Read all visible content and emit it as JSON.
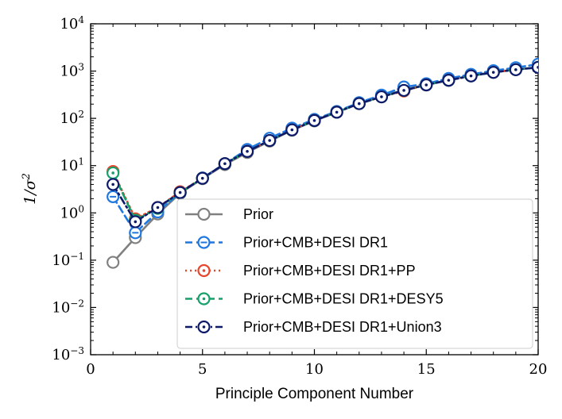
{
  "chart_data": {
    "type": "line",
    "title": "",
    "xlabel": "Principle Component Number",
    "ylabel": "1/σ²",
    "ylabel_base": "1/σ",
    "ylabel_sup": "2",
    "xlim": [
      0,
      20
    ],
    "ylim_log10": [
      -3,
      4
    ],
    "y_scale": "log",
    "x_ticks": [
      0,
      5,
      10,
      15,
      20
    ],
    "x_tick_labels": [
      "0",
      "5",
      "10",
      "15",
      "20"
    ],
    "y_ticks": [
      {
        "exp": -3,
        "base": "10",
        "sup": "−3"
      },
      {
        "exp": -2,
        "base": "10",
        "sup": "−2"
      },
      {
        "exp": -1,
        "base": "10",
        "sup": "−1"
      },
      {
        "exp": 0,
        "base": "10",
        "sup": "0"
      },
      {
        "exp": 1,
        "base": "10",
        "sup": "1"
      },
      {
        "exp": 2,
        "base": "10",
        "sup": "2"
      },
      {
        "exp": 3,
        "base": "10",
        "sup": "3"
      },
      {
        "exp": 4,
        "base": "10",
        "sup": "4"
      }
    ],
    "legend_position": "bottom-right",
    "x": [
      1,
      2,
      3,
      4,
      5,
      6,
      7,
      8,
      9,
      10,
      11,
      12,
      13,
      14,
      15,
      16,
      17,
      18,
      19,
      20
    ],
    "series": [
      {
        "name": "Prior",
        "color": "#808080",
        "dash": "solid",
        "marker": "circle",
        "values": [
          0.09,
          0.3,
          0.95,
          2.6,
          5.3,
          10.5,
          19,
          33,
          56,
          88,
          135,
          205,
          290,
          400,
          520,
          650,
          800,
          950,
          1080,
          1200
        ]
      },
      {
        "name": "Prior+CMB+DESI DR1",
        "color": "#1f77e0",
        "dash": "dashed",
        "marker": "circle-dash",
        "values": [
          2.2,
          0.38,
          1.05,
          2.7,
          5.5,
          11,
          22,
          38,
          62,
          95,
          140,
          215,
          310,
          460,
          540,
          700,
          850,
          1020,
          1180,
          1400
        ]
      },
      {
        "name": "Prior+CMB+DESI DR1+PP",
        "color": "#e8452c",
        "dash": "dotted",
        "marker": "circle-dot",
        "values": [
          7.5,
          0.75,
          1.3,
          2.8,
          5.4,
          11,
          20,
          34,
          57,
          90,
          135,
          205,
          285,
          380,
          510,
          640,
          790,
          940,
          1070,
          1200
        ]
      },
      {
        "name": "Prior+CMB+DESI DR1+DESY5",
        "color": "#16a06a",
        "dash": "dashed",
        "marker": "circle-dot",
        "values": [
          7.0,
          0.7,
          1.25,
          2.7,
          5.4,
          11,
          20,
          34,
          57,
          90,
          135,
          205,
          285,
          390,
          510,
          640,
          790,
          940,
          1070,
          1200
        ]
      },
      {
        "name": "Prior+CMB+DESI DR1+Union3",
        "color": "#0d1a6b",
        "dash": "dashdot",
        "marker": "circle-dot",
        "values": [
          4.0,
          0.65,
          1.3,
          2.7,
          5.4,
          11,
          20,
          34,
          57,
          90,
          135,
          205,
          285,
          390,
          510,
          640,
          790,
          940,
          1070,
          1200
        ]
      }
    ]
  }
}
